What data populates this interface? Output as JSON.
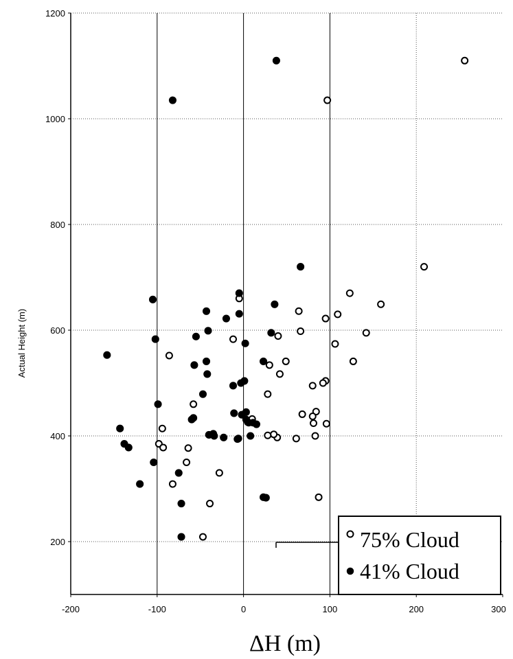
{
  "chart_data": {
    "type": "scatter",
    "xlabel": "ΔH (m)",
    "ylabel": "Actual Height (m)",
    "xlim": [
      -200,
      300
    ],
    "ylim": [
      100,
      1200
    ],
    "x_ticks": [
      -200,
      -100,
      0,
      100,
      200,
      300
    ],
    "y_ticks": [
      200,
      400,
      600,
      800,
      1000,
      1200
    ],
    "x_tick_labels": [
      "-200",
      "-100",
      "0",
      "100",
      "200",
      "300"
    ],
    "y_tick_labels": [
      "200",
      "400",
      "600",
      "800",
      "1000",
      "1200"
    ],
    "grid": true,
    "legend_position": "bottom-right",
    "series": [
      {
        "name": "75% Cloud",
        "marker": "open-circle",
        "color": "#000000",
        "points": [
          [
            256,
            1110
          ],
          [
            97,
            1035
          ],
          [
            209,
            720
          ],
          [
            123,
            670
          ],
          [
            159,
            649
          ],
          [
            -5,
            660
          ],
          [
            64,
            636
          ],
          [
            109,
            630
          ],
          [
            95,
            622
          ],
          [
            -12,
            583
          ],
          [
            66,
            598
          ],
          [
            142,
            595
          ],
          [
            40,
            589
          ],
          [
            106,
            574
          ],
          [
            127,
            541
          ],
          [
            -86,
            552
          ],
          [
            49,
            541
          ],
          [
            30,
            534
          ],
          [
            42,
            517
          ],
          [
            95,
            504
          ],
          [
            92,
            500
          ],
          [
            80,
            495
          ],
          [
            28,
            479
          ],
          [
            -58,
            460
          ],
          [
            84,
            446
          ],
          [
            68,
            441
          ],
          [
            80,
            437
          ],
          [
            96,
            423
          ],
          [
            81,
            424
          ],
          [
            -94,
            414
          ],
          [
            -98,
            385
          ],
          [
            -93,
            378
          ],
          [
            -64,
            377
          ],
          [
            61,
            395
          ],
          [
            39,
            397
          ],
          [
            35,
            403
          ],
          [
            28,
            401
          ],
          [
            83,
            400
          ],
          [
            10,
            432
          ],
          [
            6,
            425
          ],
          [
            -66,
            350
          ],
          [
            -28,
            330
          ],
          [
            -82,
            309
          ],
          [
            -39,
            272
          ],
          [
            87,
            284
          ],
          [
            -47,
            209
          ]
        ]
      },
      {
        "name": "41% Cloud",
        "marker": "filled-circle",
        "color": "#000000",
        "points": [
          [
            38,
            1110
          ],
          [
            -82,
            1035
          ],
          [
            66,
            720
          ],
          [
            -105,
            658
          ],
          [
            -5,
            670
          ],
          [
            -43,
            636
          ],
          [
            36,
            649
          ],
          [
            -5,
            631
          ],
          [
            -20,
            622
          ],
          [
            -55,
            588
          ],
          [
            -41,
            599
          ],
          [
            32,
            595
          ],
          [
            -102,
            583
          ],
          [
            2,
            575
          ],
          [
            -158,
            553
          ],
          [
            -43,
            541
          ],
          [
            -57,
            534
          ],
          [
            23,
            541
          ],
          [
            -42,
            517
          ],
          [
            1,
            504
          ],
          [
            -3,
            500
          ],
          [
            -12,
            495
          ],
          [
            -47,
            479
          ],
          [
            -99,
            460
          ],
          [
            -58,
            434
          ],
          [
            -60,
            431
          ],
          [
            -11,
            443
          ],
          [
            3,
            445
          ],
          [
            -2,
            440
          ],
          [
            3,
            431
          ],
          [
            5,
            426
          ],
          [
            11,
            425
          ],
          [
            15,
            422
          ],
          [
            -40,
            402
          ],
          [
            -35,
            404
          ],
          [
            -34,
            400
          ],
          [
            -23,
            397
          ],
          [
            -6,
            395
          ],
          [
            -7,
            394
          ],
          [
            8,
            400
          ],
          [
            -143,
            414
          ],
          [
            -138,
            385
          ],
          [
            -133,
            378
          ],
          [
            -104,
            350
          ],
          [
            -75,
            330
          ],
          [
            -120,
            309
          ],
          [
            -72,
            272
          ],
          [
            23,
            284
          ],
          [
            26,
            283
          ],
          [
            -72,
            209
          ]
        ]
      }
    ]
  }
}
